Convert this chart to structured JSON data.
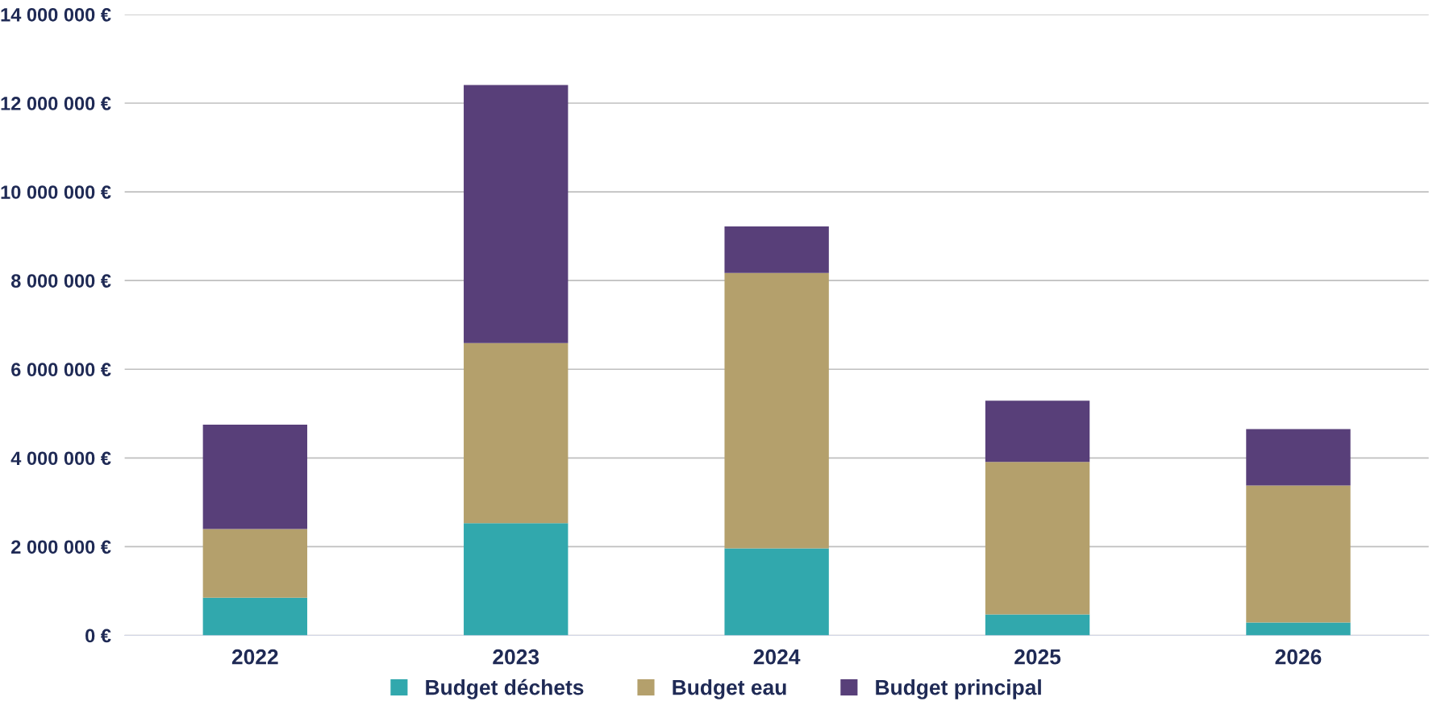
{
  "chart_data": {
    "type": "bar",
    "stacked": true,
    "categories": [
      "2022",
      "2023",
      "2024",
      "2025",
      "2026"
    ],
    "series": [
      {
        "name": "Budget déchets",
        "color": "#31a8ad",
        "values": [
          850000,
          2530000,
          1960000,
          470000,
          290000
        ]
      },
      {
        "name": "Budget eau",
        "color": "#b4a06c",
        "values": [
          1550000,
          4060000,
          6210000,
          3440000,
          3090000
        ]
      },
      {
        "name": "Budget principal",
        "color": "#583f79",
        "values": [
          2350000,
          5820000,
          1050000,
          1380000,
          1270000
        ]
      }
    ],
    "ylim": [
      0,
      14000000
    ],
    "yticks": [
      {
        "value": 0,
        "label": "0 €"
      },
      {
        "value": 2000000,
        "label": "2 000 000 €"
      },
      {
        "value": 4000000,
        "label": "4 000 000 €"
      },
      {
        "value": 6000000,
        "label": "6 000 000 €"
      },
      {
        "value": 8000000,
        "label": "8 000 000 €"
      },
      {
        "value": 10000000,
        "label": "10 000 000 €"
      },
      {
        "value": 12000000,
        "label": "12 000 000 €"
      },
      {
        "value": 14000000,
        "label": "14 000 000 €"
      }
    ],
    "grid": "y",
    "legend": "bottom"
  }
}
